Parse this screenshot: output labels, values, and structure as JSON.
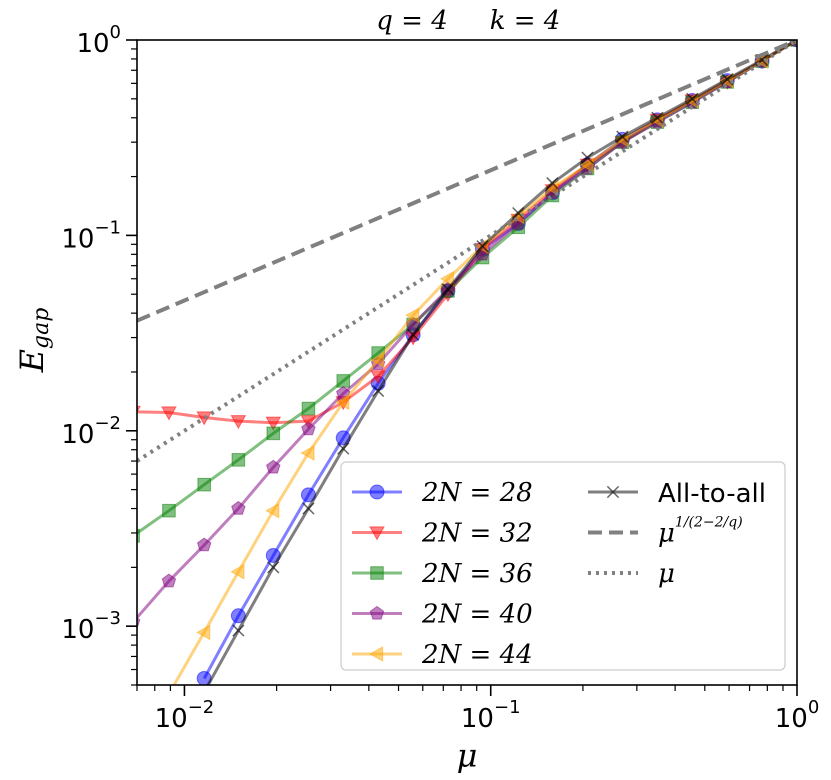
{
  "chart_data": {
    "type": "line",
    "title_left": "q = 4",
    "title_right": "k = 4",
    "xlabel": "μ",
    "ylabel": "E",
    "ylabel_sub": "gap",
    "log_x": true,
    "log_y": true,
    "minor_ticks": true,
    "legend": "lower right",
    "xlim": [
      0.007,
      1
    ],
    "ylim": [
      0.0005,
      1
    ],
    "xticks": [
      {
        "value": 0.01,
        "label": "10^-2"
      },
      {
        "value": 0.1,
        "label": "10^-1"
      },
      {
        "value": 1,
        "label": "10^0"
      }
    ],
    "yticks": [
      {
        "value": 0.001,
        "label": "10^-3"
      },
      {
        "value": 0.01,
        "label": "10^-2"
      },
      {
        "value": 0.1,
        "label": "10^-1"
      },
      {
        "value": 1,
        "label": "10^0"
      }
    ],
    "x": [
      1,
      0.769,
      0.592,
      0.455,
      0.35,
      0.269,
      0.207,
      0.159,
      0.123,
      0.094,
      0.0725,
      0.0558,
      0.0429,
      0.033,
      0.0254,
      0.0195,
      0.015,
      0.0116,
      0.0089,
      0.0068
    ],
    "series": [
      {
        "name": "2N = 28",
        "color": "#0000ff",
        "marker": "circle",
        "values": [
          1,
          0.78,
          0.62,
          0.49,
          0.39,
          0.31,
          0.23,
          0.165,
          0.115,
          0.085,
          0.052,
          0.031,
          0.0175,
          0.0092,
          0.0047,
          0.0023,
          0.00113,
          0.00054,
          null,
          null
        ]
      },
      {
        "name": "2N = 32",
        "color": "#ff0000",
        "marker": "triangle-down",
        "values": [
          1,
          0.78,
          0.61,
          0.49,
          0.39,
          0.3,
          0.23,
          0.17,
          0.12,
          0.085,
          0.05,
          0.03,
          0.019,
          0.014,
          0.0112,
          0.011,
          0.0112,
          0.0117,
          0.0124,
          0.0125
        ]
      },
      {
        "name": "2N = 36",
        "color": "#008000",
        "marker": "square",
        "values": [
          1,
          0.78,
          0.61,
          0.48,
          0.38,
          0.3,
          0.22,
          0.16,
          0.11,
          0.077,
          0.052,
          0.035,
          0.025,
          0.018,
          0.013,
          0.0097,
          0.0071,
          0.0053,
          0.0039,
          0.0029
        ]
      },
      {
        "name": "2N = 40",
        "color": "#800080",
        "marker": "pentagon",
        "values": [
          1,
          0.78,
          0.61,
          0.48,
          0.38,
          0.3,
          0.22,
          0.165,
          0.115,
          0.08,
          0.053,
          0.035,
          0.022,
          0.0155,
          0.0102,
          0.0065,
          0.004,
          0.0026,
          0.0017,
          0.00105
        ]
      },
      {
        "name": "2N = 44",
        "color": "#ffa500",
        "marker": "triangle-left",
        "values": [
          1,
          0.78,
          0.62,
          0.49,
          0.39,
          0.31,
          0.23,
          0.175,
          0.125,
          0.088,
          0.06,
          0.039,
          0.023,
          0.014,
          0.0077,
          0.0039,
          0.0019,
          0.00093,
          0.00045,
          null
        ]
      },
      {
        "name": "All-to-all",
        "color": "#000000",
        "marker": "x",
        "values": [
          1,
          0.79,
          0.63,
          0.5,
          0.4,
          0.32,
          0.25,
          0.185,
          0.13,
          0.088,
          0.053,
          0.031,
          0.016,
          0.0081,
          0.004,
          0.002,
          0.00095,
          0.00046,
          null,
          null
        ]
      },
      {
        "name": "μ",
        "name_exponent": "1/(2−2/q)",
        "color": "#808080",
        "linestyle": "dashed",
        "x": [
          0.007,
          1
        ],
        "values": [
          0.0366,
          1
        ]
      },
      {
        "name": "μ",
        "color": "#808080",
        "linestyle": "dotted",
        "x": [
          0.007,
          1
        ],
        "values": [
          0.007,
          1
        ]
      }
    ]
  }
}
